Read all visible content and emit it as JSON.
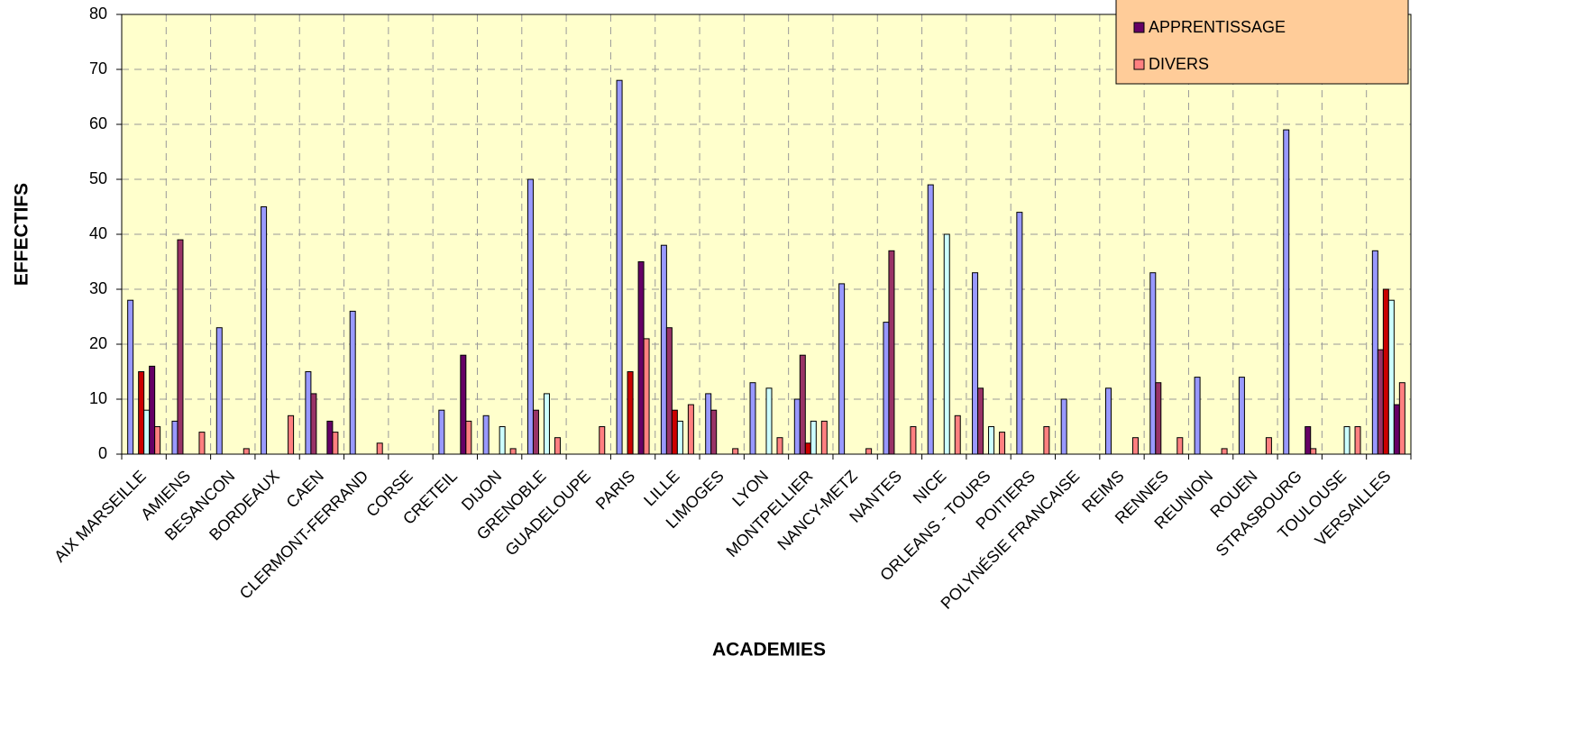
{
  "chart_data": {
    "type": "bar",
    "x_label": "ACADEMIES",
    "y_label": "EFFECTIFS",
    "categories": [
      "AIX MARSEILLE",
      "AMIENS",
      "BESANCON",
      "BORDEAUX",
      "CAEN",
      "CLERMONT-FERRAND",
      "CORSE",
      "CRETEIL",
      "DIJON",
      "GRENOBLE",
      "GUADELOUPE",
      "PARIS",
      "LILLE",
      "LIMOGES",
      "LYON",
      "MONTPELLIER",
      "NANCY-METZ",
      "NANTES",
      "NICE",
      "ORLEANS - TOURS",
      "POITIERS",
      "POLYNÉSIE FRANCAISE",
      "REIMS",
      "RENNES",
      "REUNION",
      "ROUEN",
      "STRASBOURG",
      "TOULOUSE",
      "VERSAILLES"
    ],
    "series": [
      {
        "color": "#9999ff",
        "values": [
          28,
          6,
          23,
          45,
          15,
          26,
          0,
          8,
          7,
          50,
          0,
          68,
          38,
          11,
          13,
          10,
          31,
          24,
          49,
          33,
          44,
          10,
          12,
          33,
          14,
          14,
          59,
          0,
          37
        ]
      },
      {
        "color": "#993366",
        "values": [
          0,
          39,
          0,
          0,
          11,
          0,
          0,
          0,
          0,
          8,
          0,
          0,
          23,
          8,
          0,
          18,
          0,
          37,
          0,
          12,
          0,
          0,
          0,
          13,
          0,
          0,
          0,
          0,
          19
        ]
      },
      {
        "color": "#cc0000",
        "values": [
          15,
          0,
          0,
          0,
          0,
          0,
          0,
          0,
          0,
          0,
          0,
          15,
          8,
          0,
          0,
          2,
          0,
          0,
          0,
          0,
          0,
          0,
          0,
          0,
          0,
          0,
          0,
          0,
          30
        ]
      },
      {
        "color": "#ccffff",
        "values": [
          8,
          0,
          0,
          0,
          0,
          0,
          0,
          0,
          5,
          11,
          0,
          0,
          6,
          0,
          12,
          6,
          0,
          0,
          40,
          5,
          0,
          0,
          0,
          0,
          0,
          0,
          0,
          5,
          28
        ]
      },
      {
        "name": "APPRENTISSAGE",
        "color": "#660066",
        "values": [
          16,
          0,
          0,
          0,
          6,
          0,
          0,
          18,
          0,
          0,
          0,
          35,
          0,
          0,
          0,
          0,
          0,
          0,
          0,
          0,
          0,
          0,
          0,
          0,
          0,
          0,
          5,
          0,
          9
        ]
      },
      {
        "name": "DIVERS",
        "color": "#ff8080",
        "values": [
          5,
          4,
          1,
          7,
          4,
          2,
          0,
          6,
          1,
          3,
          5,
          21,
          9,
          1,
          3,
          6,
          1,
          5,
          7,
          4,
          5,
          0,
          3,
          3,
          1,
          3,
          1,
          5,
          13
        ]
      }
    ],
    "ylim": [
      0,
      80
    ],
    "yticks": [
      0,
      10,
      20,
      30,
      40,
      50,
      60,
      70,
      80
    ],
    "grid": true,
    "legend": "top-right"
  }
}
